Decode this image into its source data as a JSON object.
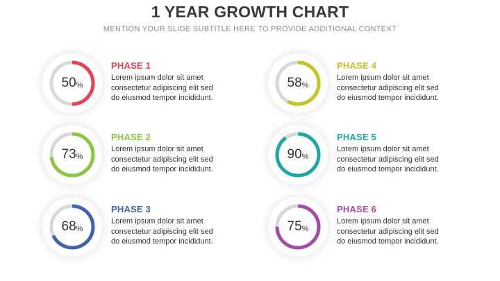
{
  "title": "1 YEAR GROWTH CHART",
  "subtitle": "MENTION YOUR SLIDE SUBTITLE HERE TO PROVIDE ADDITIONAL CONTEXT",
  "phases": [
    {
      "label": "PHASE 1",
      "percent": 50,
      "percent_sign": "%",
      "color": "#e8414f",
      "lines": [
        "Lorem ipsum dolor sit amet",
        "consectetur adipiscing elit sed",
        "do eiusmod tempor incididunt."
      ]
    },
    {
      "label": "PHASE 2",
      "percent": 73,
      "percent_sign": "%",
      "color": "#8cc63f",
      "lines": [
        "Lorem ipsum dolor sit amet",
        "consectetur adipiscing elit sed",
        "do eiusmod tempor incididunt."
      ]
    },
    {
      "label": "PHASE 3",
      "percent": 68,
      "percent_sign": "%",
      "color": "#4262ad",
      "lines": [
        "Lorem ipsum dolor sit amet",
        "consectetur adipiscing elit sed",
        "do eiusmod tempor incididunt."
      ]
    },
    {
      "label": "PHASE 4",
      "percent": 58,
      "percent_sign": "%",
      "color": "#c9c227",
      "lines": [
        "Lorem ipsum dolor sit amet",
        "consectetur adipiscing elit sed",
        "do eiusmod tempor incididunt."
      ]
    },
    {
      "label": "PHASE 5",
      "percent": 90,
      "percent_sign": "%",
      "color": "#1ea7a3",
      "lines": [
        "Lorem ipsum dolor sit amet",
        "consectetur adipiscing elit sed",
        "do eiusmod tempor incididunt."
      ]
    },
    {
      "label": "PHASE 6",
      "percent": 75,
      "percent_sign": "%",
      "color": "#a34ba5",
      "lines": [
        "Lorem ipsum dolor sit amet",
        "consectetur adipiscing elit sed",
        "do eiusmod tempor incididunt."
      ]
    }
  ],
  "track_color": "#d8d8d8"
}
